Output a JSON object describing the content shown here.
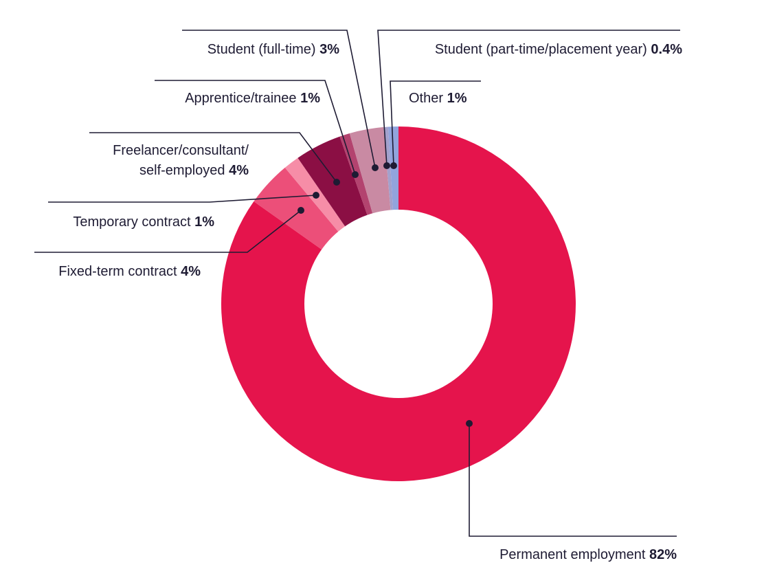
{
  "chart_data": {
    "type": "pie",
    "title": "",
    "slices": [
      {
        "label": "Permanent employment",
        "value_label": "82%",
        "value": 82,
        "color": "#e5144c"
      },
      {
        "label": "Fixed-term contract",
        "value_label": "4%",
        "value": 4,
        "color": "#ec4f79"
      },
      {
        "label": "Temporary contract",
        "value_label": "1%",
        "value": 1.4,
        "color": "#f68da7"
      },
      {
        "label": "Freelancer/consultant/",
        "label2": "self-employed",
        "value_label": "4%",
        "value": 4.1,
        "color": "#8b0f44"
      },
      {
        "label": "Apprentice/trainee",
        "value_label": "1%",
        "value": 0.9,
        "color": "#b3436f"
      },
      {
        "label": "Student (full-time)",
        "value_label": "3%",
        "value": 3,
        "color": "#c98aa3"
      },
      {
        "label": "Student (part-time/placement year)",
        "value_label": "0.4%",
        "value": 0.4,
        "color": "#a3a1cc"
      },
      {
        "label": "Other",
        "value_label": "1%",
        "value": 0.9,
        "color": "#92a4dd"
      }
    ]
  }
}
